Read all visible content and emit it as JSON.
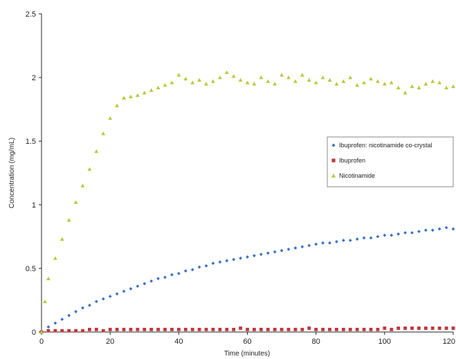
{
  "chart_data": {
    "type": "scatter",
    "xlabel": "Time (minutes)",
    "ylabel": "Concentration (mg/mL)",
    "xlim": [
      0,
      120
    ],
    "ylim": [
      0,
      2.5
    ],
    "xticks": [
      "0",
      "20",
      "40",
      "60",
      "80",
      "100",
      "120"
    ],
    "yticks": [
      "0",
      "0.5",
      "1",
      "1.5",
      "2",
      "2.5"
    ],
    "grid": false,
    "legend_position": "right",
    "series": [
      {
        "name": "Ibuprofen: nicotinamide co-crystal",
        "color": "#3a6fc7",
        "marker": "diamond",
        "x": [
          0,
          2,
          4,
          6,
          8,
          10,
          12,
          14,
          16,
          18,
          20,
          22,
          24,
          26,
          28,
          30,
          32,
          34,
          36,
          38,
          40,
          42,
          44,
          46,
          48,
          50,
          52,
          54,
          56,
          58,
          60,
          62,
          64,
          66,
          68,
          70,
          72,
          74,
          76,
          78,
          80,
          82,
          84,
          86,
          88,
          90,
          92,
          94,
          96,
          98,
          100,
          102,
          104,
          106,
          108,
          110,
          112,
          114,
          116,
          118,
          120
        ],
        "y": [
          0.0,
          0.04,
          0.07,
          0.1,
          0.13,
          0.16,
          0.19,
          0.21,
          0.24,
          0.26,
          0.28,
          0.3,
          0.32,
          0.34,
          0.36,
          0.38,
          0.4,
          0.42,
          0.43,
          0.45,
          0.46,
          0.48,
          0.49,
          0.51,
          0.52,
          0.54,
          0.55,
          0.56,
          0.57,
          0.58,
          0.59,
          0.6,
          0.61,
          0.62,
          0.63,
          0.64,
          0.65,
          0.66,
          0.67,
          0.68,
          0.69,
          0.7,
          0.7,
          0.71,
          0.72,
          0.72,
          0.73,
          0.74,
          0.74,
          0.75,
          0.76,
          0.76,
          0.77,
          0.78,
          0.78,
          0.79,
          0.8,
          0.8,
          0.81,
          0.82,
          0.81
        ]
      },
      {
        "name": "Ibuprofen",
        "color": "#c0353c",
        "marker": "square",
        "x": [
          0,
          2,
          4,
          6,
          8,
          10,
          12,
          14,
          16,
          18,
          20,
          22,
          24,
          26,
          28,
          30,
          32,
          34,
          36,
          38,
          40,
          42,
          44,
          46,
          48,
          50,
          52,
          54,
          56,
          58,
          60,
          62,
          64,
          66,
          68,
          70,
          72,
          74,
          76,
          78,
          80,
          82,
          84,
          86,
          88,
          90,
          92,
          94,
          96,
          98,
          100,
          102,
          104,
          106,
          108,
          110,
          112,
          114,
          116,
          118,
          120
        ],
        "y": [
          0.0,
          0.01,
          0.01,
          0.01,
          0.01,
          0.01,
          0.01,
          0.02,
          0.02,
          0.01,
          0.02,
          0.02,
          0.02,
          0.02,
          0.02,
          0.02,
          0.02,
          0.02,
          0.02,
          0.02,
          0.02,
          0.02,
          0.02,
          0.02,
          0.02,
          0.02,
          0.02,
          0.02,
          0.02,
          0.03,
          0.02,
          0.02,
          0.02,
          0.02,
          0.02,
          0.02,
          0.02,
          0.02,
          0.02,
          0.03,
          0.02,
          0.02,
          0.02,
          0.02,
          0.02,
          0.02,
          0.02,
          0.02,
          0.02,
          0.02,
          0.03,
          0.02,
          0.03,
          0.03,
          0.03,
          0.03,
          0.03,
          0.03,
          0.03,
          0.03,
          0.03
        ]
      },
      {
        "name": "Nicotinamide",
        "color": "#b8c93a",
        "marker": "triangle",
        "x": [
          0,
          1,
          2,
          4,
          6,
          8,
          10,
          12,
          14,
          16,
          18,
          20,
          22,
          24,
          26,
          28,
          30,
          32,
          34,
          36,
          38,
          40,
          42,
          44,
          46,
          48,
          50,
          52,
          54,
          56,
          58,
          60,
          62,
          64,
          66,
          68,
          70,
          72,
          74,
          76,
          78,
          80,
          82,
          84,
          86,
          88,
          90,
          92,
          94,
          96,
          98,
          100,
          102,
          104,
          106,
          108,
          110,
          112,
          114,
          116,
          118,
          120
        ],
        "y": [
          0.0,
          0.24,
          0.42,
          0.58,
          0.73,
          0.88,
          1.02,
          1.15,
          1.28,
          1.42,
          1.56,
          1.68,
          1.78,
          1.84,
          1.85,
          1.86,
          1.88,
          1.9,
          1.92,
          1.94,
          1.96,
          2.02,
          1.99,
          1.96,
          1.98,
          1.95,
          1.97,
          2.0,
          2.04,
          2.01,
          1.98,
          1.96,
          1.95,
          2.0,
          1.97,
          1.95,
          2.02,
          2.0,
          1.97,
          2.02,
          1.98,
          1.96,
          2.0,
          1.98,
          1.95,
          1.97,
          2.0,
          1.94,
          1.96,
          1.99,
          1.97,
          1.95,
          1.96,
          1.92,
          1.88,
          1.93,
          1.92,
          1.95,
          1.97,
          1.96,
          1.92,
          1.93
        ]
      }
    ]
  }
}
